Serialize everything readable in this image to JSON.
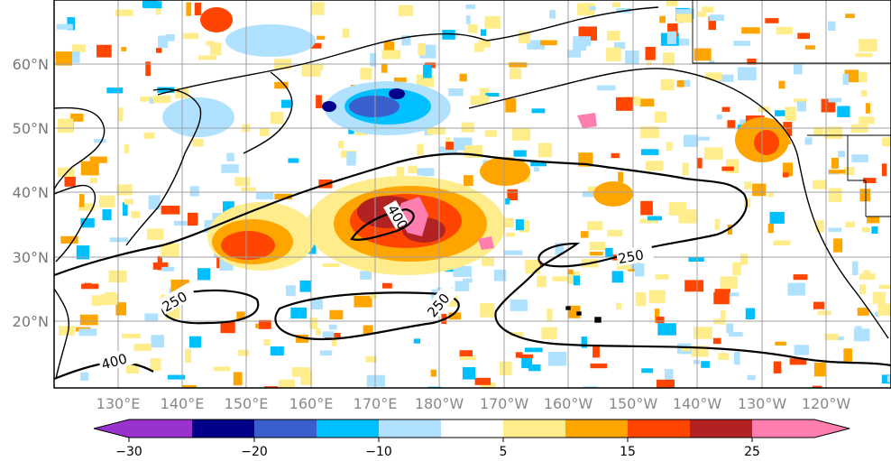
{
  "lat_labels": [
    "60°N",
    "50°N",
    "40°N",
    "30°N",
    "20°N"
  ],
  "lon_labels": [
    "130°E",
    "140°E",
    "150°E",
    "160°E",
    "170°E",
    "180°W",
    "170°W",
    "160°W",
    "150°W",
    "140°W",
    "130°W",
    "120°W"
  ],
  "contour_labels": [
    "400",
    "250",
    "250",
    "250",
    "400"
  ],
  "colorbar": {
    "ticks": [
      "−30",
      "−20",
      "−10",
      "5",
      "15",
      "25"
    ],
    "colors": [
      "#9a32cd",
      "#00008b",
      "#3a5fcd",
      "#00bfff",
      "#b0e2ff",
      "#ffffff",
      "#ffec8b",
      "#ffa500",
      "#ff4500",
      "#b22222",
      "#ff7eb0"
    ]
  },
  "field_colors": {
    "pink": "#ff7eb0",
    "dark_red": "#b22222",
    "red": "#ff4500",
    "orange": "#ffa500",
    "yellow": "#ffec8b",
    "light_blue": "#b0e2ff",
    "sky_blue": "#00bfff",
    "blue": "#3a5fcd",
    "navy": "#00008b"
  }
}
